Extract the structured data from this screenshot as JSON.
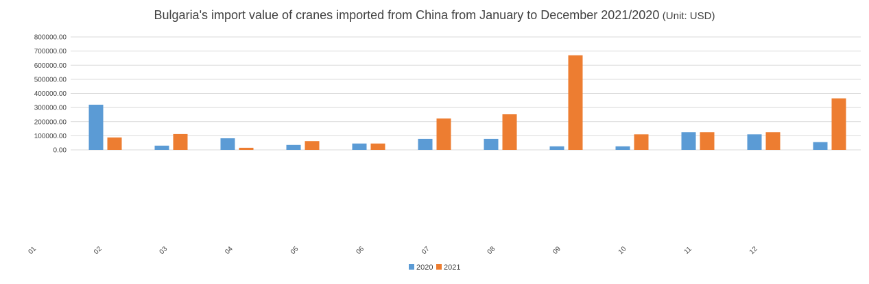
{
  "chart_data": {
    "type": "bar",
    "title": "Bulgaria's import value of cranes imported from China from January to December 2021/2020",
    "title_unit": "(Unit: USD)",
    "categories": [
      "01",
      "02",
      "03",
      "04",
      "05",
      "06",
      "07",
      "08",
      "09",
      "10",
      "11",
      "12"
    ],
    "series": [
      {
        "name": "2020",
        "color": "#5B9BD5",
        "values": [
          320000,
          30000,
          82000,
          35000,
          45000,
          78000,
          78000,
          25000,
          25000,
          125000,
          110000,
          55000
        ]
      },
      {
        "name": "2021",
        "color": "#ED7D31",
        "values": [
          88000,
          112000,
          15000,
          62000,
          45000,
          222000,
          252000,
          670000,
          110000,
          125000,
          125000,
          365000
        ]
      }
    ],
    "y_ticks": [
      "0.00",
      "100000.00",
      "200000.00",
      "300000.00",
      "400000.00",
      "500000.00",
      "600000.00",
      "700000.00",
      "800000.00"
    ],
    "ylim": [
      0,
      800000
    ],
    "grid": true,
    "legend_position": "bottom"
  }
}
